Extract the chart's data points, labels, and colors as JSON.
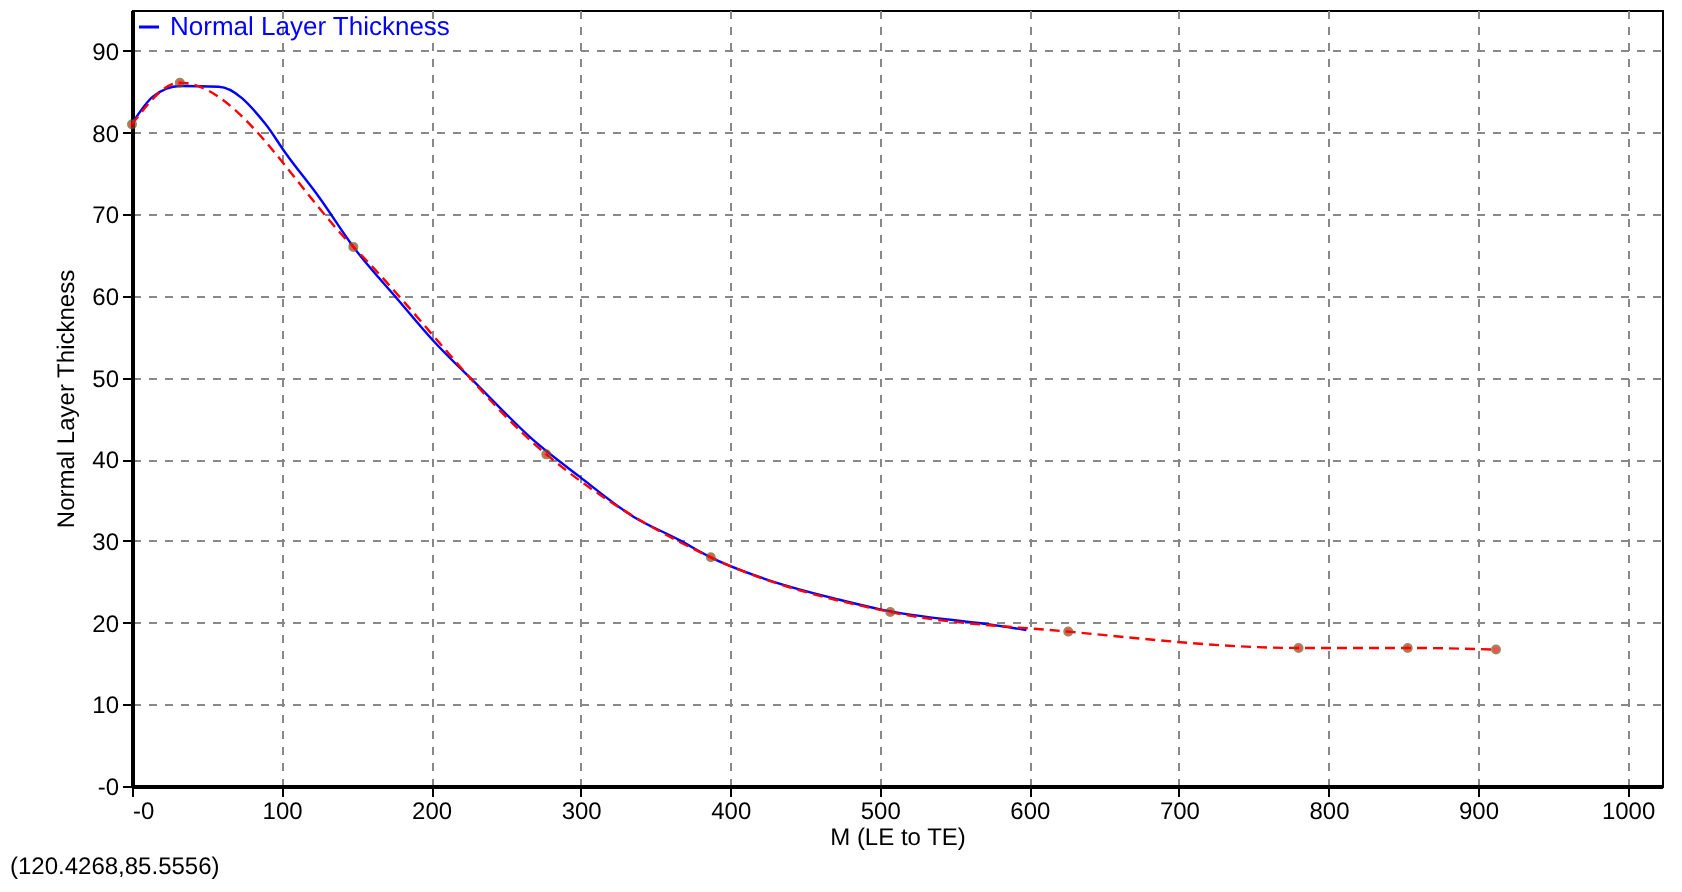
{
  "chart_data": {
    "type": "line",
    "xlabel": "M (LE to TE)",
    "ylabel": "Normal Layer Thickness",
    "annotations": [
      "(120.4268,85.5556)"
    ],
    "xlim": [
      0,
      1023
    ],
    "ylim": [
      0,
      95
    ],
    "xticks": [
      {
        "value": 0,
        "label": "-0"
      },
      100,
      200,
      300,
      400,
      500,
      600,
      700,
      800,
      900,
      1000
    ],
    "yticks": [
      {
        "value": 0,
        "label": "-0"
      },
      10,
      20,
      30,
      40,
      50,
      60,
      70,
      80,
      90
    ],
    "grid": true,
    "legend": "top left",
    "series": [
      {
        "name": "Normal Layer Thickness",
        "color": "#0000ff",
        "line_style": "solid",
        "marker": "none",
        "x": [
          0,
          14,
          32,
          58,
          89,
          103,
          125,
          148,
          178,
          201,
          232,
          268,
          299,
          335,
          366,
          388,
          424,
          473,
          501,
          580,
          598
        ],
        "values": [
          81.1,
          84.4,
          85.7,
          85.6,
          81.1,
          77.4,
          72.1,
          66.0,
          59.5,
          54.6,
          48.9,
          42.4,
          37.9,
          33.0,
          30.1,
          27.9,
          25.3,
          22.8,
          21.6,
          19.6,
          19.1
        ]
      },
      {
        "color": "#ff0000",
        "line_style": "dashed",
        "marker": "circle",
        "x": [
          0,
          32,
          148,
          277,
          387,
          507,
          626,
          780,
          853,
          912
        ],
        "values": [
          81,
          86.1,
          66.0,
          40.6,
          28.0,
          21.3,
          18.9,
          16.9,
          16.9,
          16.7
        ]
      }
    ]
  }
}
